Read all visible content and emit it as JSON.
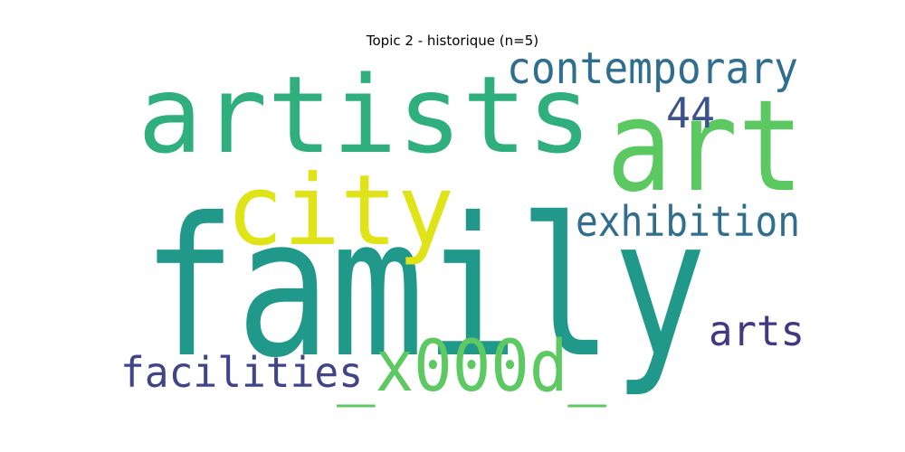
{
  "chart_data": {
    "type": "wordcloud",
    "title": "Topic 2 - historique (n=5)",
    "words": [
      {
        "text": "family",
        "weight": 1.0,
        "color": "#21998a"
      },
      {
        "text": "artists",
        "weight": 0.62,
        "color": "#2eaf7d"
      },
      {
        "text": "art",
        "weight": 0.58,
        "color": "#5cc862"
      },
      {
        "text": "city",
        "weight": 0.47,
        "color": "#dfe318"
      },
      {
        "text": "_x000d_",
        "weight": 0.44,
        "color": "#5ec962"
      },
      {
        "text": "contemporary",
        "weight": 0.22,
        "color": "#2f6e8e"
      },
      {
        "text": "exhibition",
        "weight": 0.22,
        "color": "#2f6e8e"
      },
      {
        "text": "facilities",
        "weight": 0.22,
        "color": "#414487"
      },
      {
        "text": "arts",
        "weight": 0.22,
        "color": "#453781"
      },
      {
        "text": "44",
        "weight": 0.2,
        "color": "#3b528b"
      }
    ]
  }
}
